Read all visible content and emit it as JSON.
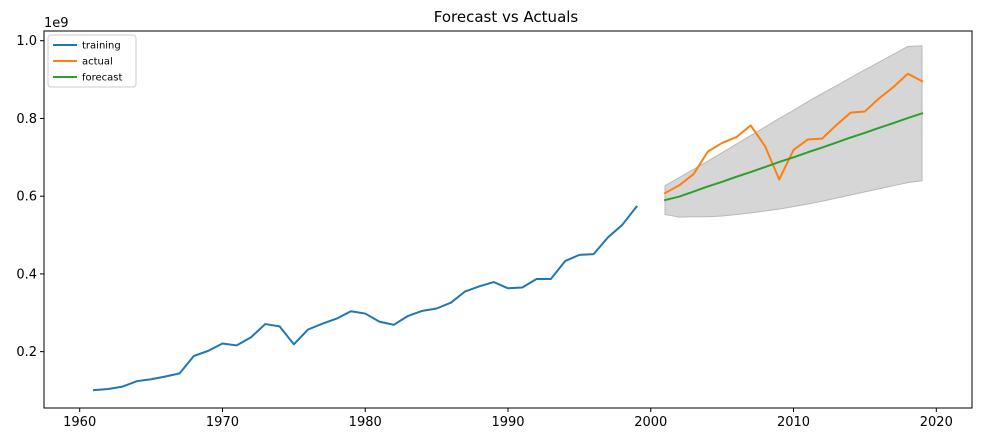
{
  "chart_data": {
    "type": "line",
    "title": "Forecast vs Actuals",
    "xlabel": "",
    "ylabel": "",
    "y_offset_label": "1e9",
    "xlim": [
      1957.5,
      2022.5
    ],
    "ylim": [
      0.055,
      1.025
    ],
    "x_ticks": [
      1960,
      1970,
      1980,
      1990,
      2000,
      2010,
      2020
    ],
    "y_ticks": [
      0.2,
      0.4,
      0.6,
      0.8,
      1.0
    ],
    "x_tick_labels": [
      "1960",
      "1970",
      "1980",
      "1990",
      "2000",
      "2010",
      "2020"
    ],
    "y_tick_labels": [
      "0.2",
      "0.4",
      "0.6",
      "0.8",
      "1.0"
    ],
    "grid": false,
    "legend_position": "top-left",
    "series": [
      {
        "name": "training",
        "color": "#1f77b4",
        "x": [
          1961,
          1962,
          1963,
          1964,
          1965,
          1966,
          1967,
          1968,
          1969,
          1970,
          1971,
          1972,
          1973,
          1974,
          1975,
          1976,
          1977,
          1978,
          1979,
          1980,
          1981,
          1982,
          1983,
          1984,
          1985,
          1986,
          1987,
          1988,
          1989,
          1990,
          1991,
          1992,
          1993,
          1994,
          1995,
          1996,
          1997,
          1998,
          1999
        ],
        "values": [
          0.101,
          0.104,
          0.11,
          0.124,
          0.129,
          0.136,
          0.144,
          0.189,
          0.202,
          0.221,
          0.216,
          0.237,
          0.271,
          0.265,
          0.219,
          0.257,
          0.272,
          0.285,
          0.304,
          0.298,
          0.277,
          0.269,
          0.292,
          0.305,
          0.311,
          0.326,
          0.355,
          0.368,
          0.379,
          0.363,
          0.365,
          0.387,
          0.387,
          0.433,
          0.449,
          0.451,
          0.494,
          0.526,
          0.573
        ]
      },
      {
        "name": "actual",
        "color": "#ff7f0e",
        "x": [
          2001,
          2002,
          2003,
          2004,
          2005,
          2006,
          2007,
          2008,
          2009,
          2010,
          2011,
          2012,
          2013,
          2014,
          2015,
          2016,
          2017,
          2018,
          2019
        ],
        "values": [
          0.608,
          0.628,
          0.657,
          0.715,
          0.737,
          0.752,
          0.782,
          0.729,
          0.643,
          0.719,
          0.746,
          0.748,
          0.783,
          0.815,
          0.818,
          0.852,
          0.881,
          0.915,
          0.896
        ]
      },
      {
        "name": "forecast",
        "color": "#2ca02c",
        "x": [
          2001,
          2002,
          2003,
          2004,
          2005,
          2006,
          2007,
          2008,
          2009,
          2010,
          2011,
          2012,
          2013,
          2014,
          2015,
          2016,
          2017,
          2018,
          2019
        ],
        "values": [
          0.59,
          0.599,
          0.612,
          0.625,
          0.637,
          0.65,
          0.662,
          0.675,
          0.688,
          0.7,
          0.713,
          0.725,
          0.738,
          0.751,
          0.763,
          0.776,
          0.788,
          0.801,
          0.813
        ]
      }
    ],
    "confidence_band": {
      "color": "#d6d6d6",
      "edge_color": "#b8b8b8",
      "x": [
        2001,
        2002,
        2003,
        2004,
        2005,
        2006,
        2007,
        2008,
        2009,
        2010,
        2011,
        2012,
        2013,
        2014,
        2015,
        2016,
        2017,
        2018,
        2019
      ],
      "upper": [
        0.627,
        0.648,
        0.669,
        0.69,
        0.712,
        0.734,
        0.756,
        0.778,
        0.8,
        0.821,
        0.843,
        0.864,
        0.884,
        0.905,
        0.925,
        0.945,
        0.965,
        0.985,
        0.987
      ],
      "lower": [
        0.553,
        0.546,
        0.547,
        0.547,
        0.549,
        0.553,
        0.557,
        0.562,
        0.567,
        0.573,
        0.58,
        0.587,
        0.595,
        0.603,
        0.611,
        0.619,
        0.627,
        0.635,
        0.64
      ]
    }
  }
}
